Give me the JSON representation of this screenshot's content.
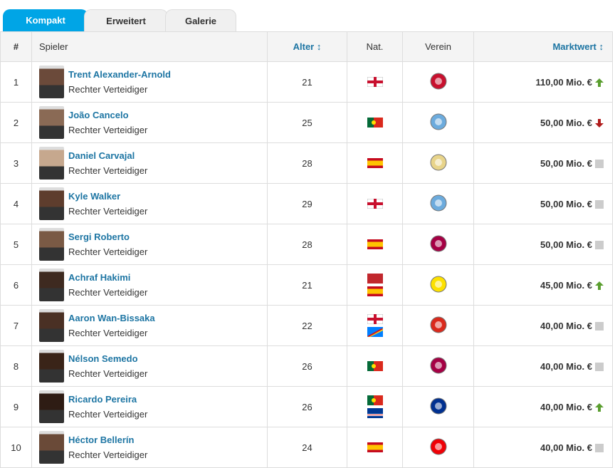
{
  "tabs": [
    "Kompakt",
    "Erweitert",
    "Galerie"
  ],
  "table": {
    "headers": [
      "#",
      "Spieler",
      "Alter",
      "Nat.",
      "Verein",
      "Marktwert"
    ],
    "rows": [
      {
        "rank": 1,
        "name": "Trent Alexander-Arnold",
        "position": "Rechter Verteidiger",
        "age": 21,
        "value": "110,00 Mio. €"
      },
      {
        "rank": 2,
        "name": "João Cancelo",
        "position": "Rechter Verteidiger",
        "age": 25,
        "value": "50,00 Mio. €"
      },
      {
        "rank": 3,
        "name": "Daniel Carvajal",
        "position": "Rechter Verteidiger",
        "age": 28,
        "value": "50,00 Mio. €"
      },
      {
        "rank": 4,
        "name": "Kyle Walker",
        "position": "Rechter Verteidiger",
        "age": 29,
        "value": "50,00 Mio. €"
      },
      {
        "rank": 5,
        "name": "Sergi Roberto",
        "position": "Rechter Verteidiger",
        "age": 28,
        "value": "50,00 Mio. €"
      },
      {
        "rank": 6,
        "name": "Achraf Hakimi",
        "position": "Rechter Verteidiger",
        "age": 21,
        "value": "45,00 Mio. €"
      },
      {
        "rank": 7,
        "name": "Aaron Wan-Bissaka",
        "position": "Rechter Verteidiger",
        "age": 22,
        "value": "40,00 Mio. €"
      },
      {
        "rank": 8,
        "name": "Nélson Semedo",
        "position": "Rechter Verteidiger",
        "age": 26,
        "value": "40,00 Mio. €"
      },
      {
        "rank": 9,
        "name": "Ricardo Pereira",
        "position": "Rechter Verteidiger",
        "age": 26,
        "value": "40,00 Mio. €"
      },
      {
        "rank": 10,
        "name": "Héctor Bellerín",
        "position": "Rechter Verteidiger",
        "age": 24,
        "value": "40,00 Mio. €"
      }
    ]
  }
}
